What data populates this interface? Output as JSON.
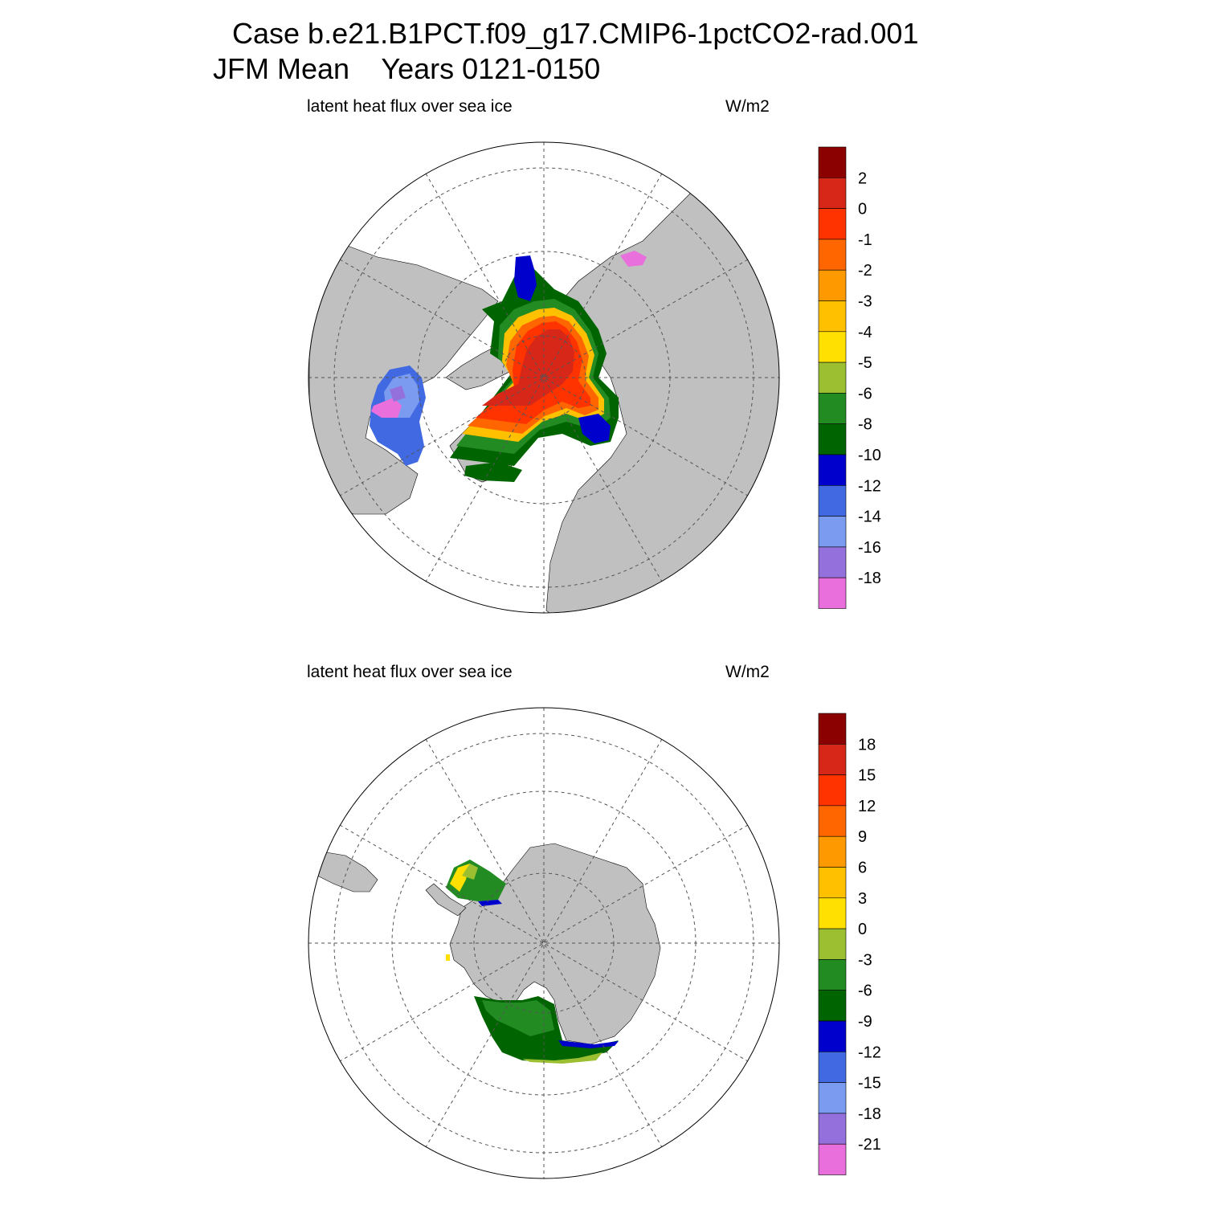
{
  "title": {
    "line1": "Case b.e21.B1PCT.f09_g17.CMIP6-1pctCO2-rad.001",
    "line2": "JFM Mean    Years 0121-0150"
  },
  "colors": {
    "land": "#c0c0c0",
    "ocean": "#ffffff",
    "scale": [
      "#8b0000",
      "#d62718",
      "#ff3300",
      "#ff6600",
      "#ff9900",
      "#ffc000",
      "#ffe000",
      "#9bbf30",
      "#228b22",
      "#006400",
      "#0000cd",
      "#4169e1",
      "#7b9bf0",
      "#9370db",
      "#e86fdc"
    ]
  },
  "panels": [
    {
      "id": "north",
      "hemisphere": "Northern",
      "left_label": "latent heat flux over sea ice",
      "right_label": "W/m2",
      "colorbar": {
        "levels": [
          "2",
          "0",
          "-1",
          "-2",
          "-3",
          "-4",
          "-5",
          "-6",
          "-8",
          "-10",
          "-12",
          "-14",
          "-16",
          "-18"
        ]
      }
    },
    {
      "id": "south",
      "hemisphere": "Southern",
      "left_label": "latent heat flux over sea ice",
      "right_label": "W/m2",
      "colorbar": {
        "levels": [
          "18",
          "15",
          "12",
          "9",
          "6",
          "3",
          "0",
          "-3",
          "-6",
          "-9",
          "-12",
          "-15",
          "-18",
          "-21"
        ]
      }
    }
  ]
}
